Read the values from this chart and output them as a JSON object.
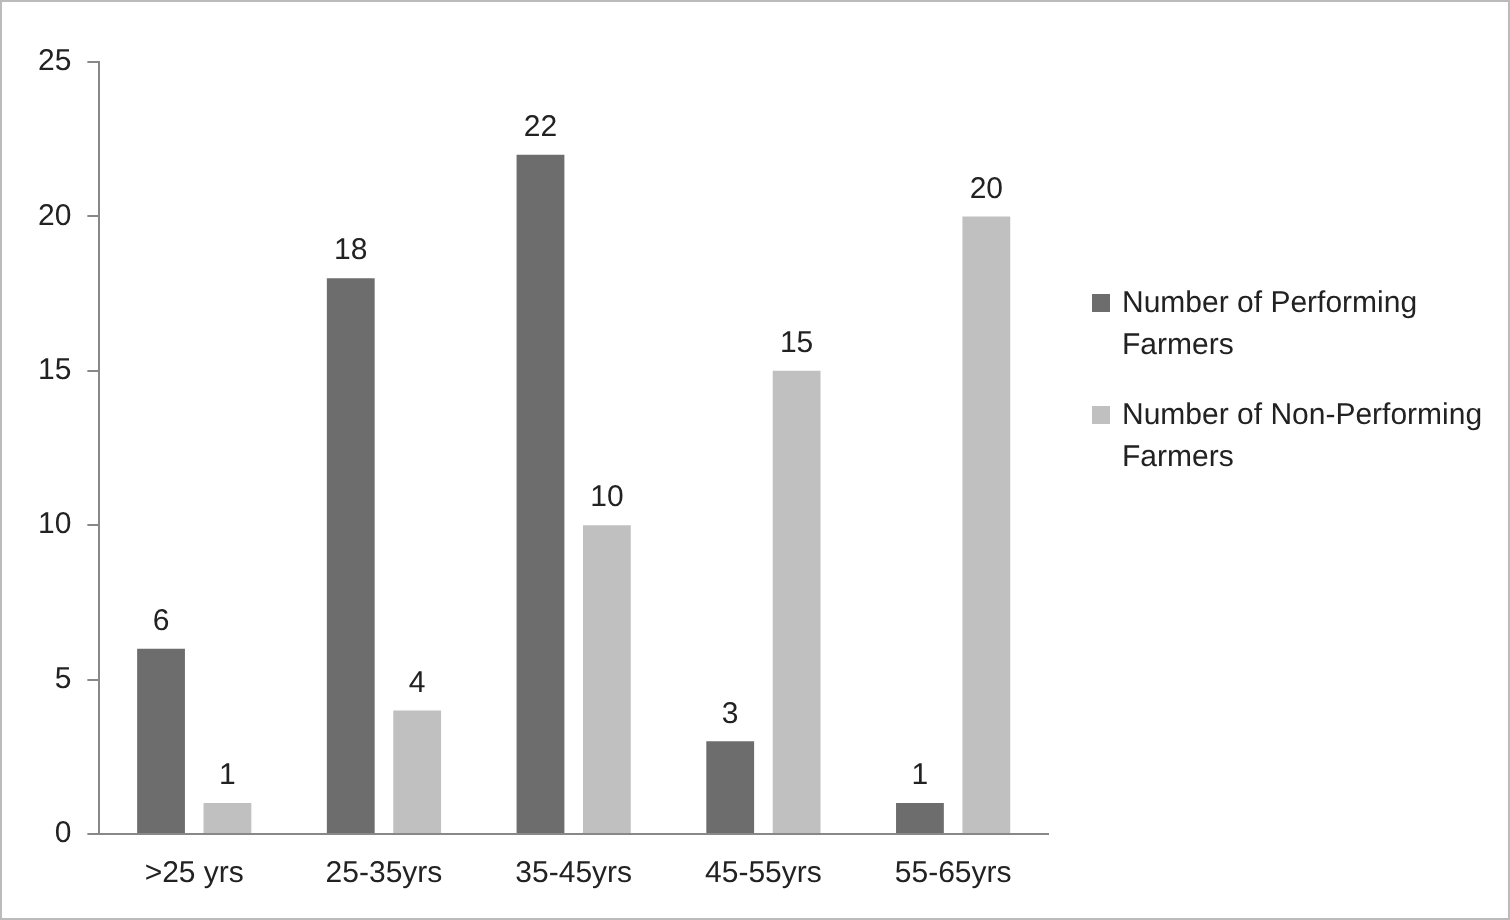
{
  "chart_data": {
    "type": "bar",
    "categories": [
      ">25 yrs",
      "25-35yrs",
      "35-45yrs",
      "45-55yrs",
      "55-65yrs"
    ],
    "series": [
      {
        "name": "Number of Performing Farmers",
        "color": "#6d6d6d",
        "values": [
          6,
          18,
          22,
          3,
          1
        ]
      },
      {
        "name": "Number of Non-Performing Farmers",
        "color": "#c0c0c0",
        "values": [
          1,
          4,
          10,
          15,
          20
        ]
      }
    ],
    "ylim": [
      0,
      25
    ],
    "yticks": [
      0,
      5,
      10,
      15,
      20,
      25
    ],
    "grid": false,
    "legend": "right",
    "data_labels": true
  }
}
